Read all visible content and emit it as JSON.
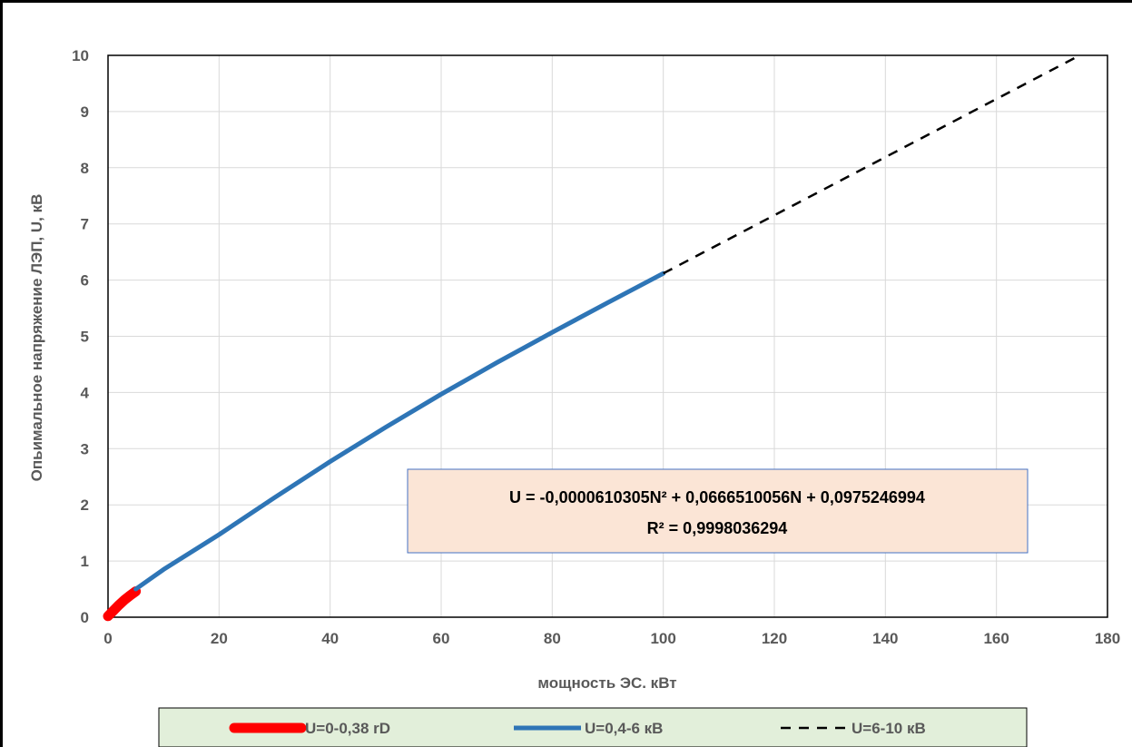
{
  "chart_data": {
    "type": "line",
    "title": "",
    "xlabel": "мощность ЭС. кВт",
    "ylabel": "Опьимальное напряжение ЛЭП, U, кВ",
    "xlim": [
      0,
      180
    ],
    "ylim": [
      0,
      10
    ],
    "x_ticks": [
      0,
      20,
      40,
      60,
      80,
      100,
      120,
      140,
      160,
      180
    ],
    "y_ticks": [
      0,
      1,
      2,
      3,
      4,
      5,
      6,
      7,
      8,
      9,
      10
    ],
    "grid": true,
    "legend_position": "bottom",
    "series": [
      {
        "name": "U=0-0,38 rD",
        "color": "#ff0000",
        "style": "solid-thick",
        "x": [
          0,
          1,
          2,
          3,
          4,
          5
        ],
        "y": [
          0.02,
          0.12,
          0.22,
          0.31,
          0.39,
          0.46
        ]
      },
      {
        "name": "U=0,4-6 кВ",
        "color": "#2e75b6",
        "style": "solid",
        "x": [
          5,
          10,
          20,
          30,
          40,
          50,
          60,
          70,
          80,
          90,
          100
        ],
        "y": [
          0.5,
          0.85,
          1.47,
          2.13,
          2.77,
          3.38,
          3.97,
          4.53,
          5.07,
          5.6,
          6.12
        ]
      },
      {
        "name": "U=6-10 кВ",
        "color": "#000000",
        "style": "dashed",
        "x": [
          100,
          175
        ],
        "y": [
          6.12,
          10
        ]
      }
    ],
    "annotation": {
      "equation": "U = -0,0000610305N² + 0,0666510056N + 0,0975246994",
      "r2": "R² = 0,9998036294",
      "fill": "#fbe5d6",
      "border": "#4472c4"
    },
    "legend_fill": "#e2efda"
  }
}
